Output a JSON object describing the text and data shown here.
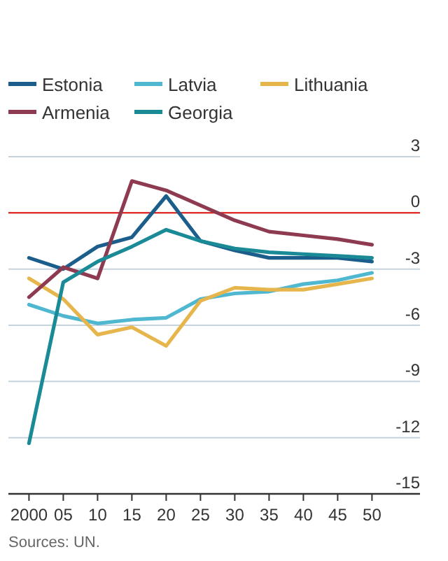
{
  "chart_data": {
    "type": "line",
    "x": [
      2000,
      2005,
      2010,
      2015,
      2020,
      2025,
      2030,
      2035,
      2040,
      2045,
      2050
    ],
    "series": [
      {
        "name": "Estonia",
        "color": "#1b5e8c",
        "values": [
          -2.4,
          -3.0,
          -1.8,
          -1.3,
          0.9,
          -1.5,
          -2.0,
          -2.4,
          -2.4,
          -2.4,
          -2.6
        ]
      },
      {
        "name": "Latvia",
        "color": "#4fb8d0",
        "values": [
          -4.9,
          -5.5,
          -5.9,
          -5.7,
          -5.6,
          -4.6,
          -4.3,
          -4.2,
          -3.8,
          -3.6,
          -3.2
        ]
      },
      {
        "name": "Lithuania",
        "color": "#e6b64c",
        "values": [
          -3.5,
          -4.6,
          -6.5,
          -6.1,
          -7.1,
          -4.7,
          -4.0,
          -4.1,
          -4.1,
          -3.8,
          -3.5
        ]
      },
      {
        "name": "Armenia",
        "color": "#8e3a50",
        "values": [
          -4.5,
          -2.9,
          -3.5,
          1.7,
          1.2,
          0.4,
          -0.4,
          -1.0,
          -1.2,
          -1.4,
          -1.7
        ]
      },
      {
        "name": "Georgia",
        "color": "#1a8a96",
        "values": [
          -12.3,
          -3.7,
          -2.6,
          -1.8,
          -0.9,
          -1.5,
          -1.9,
          -2.1,
          -2.2,
          -2.3,
          -2.4
        ]
      }
    ],
    "xlim": [
      1997,
      2057
    ],
    "xticks": [
      2000,
      {
        "value": 2005,
        "label": "05"
      },
      {
        "value": 2010,
        "label": "10"
      },
      {
        "value": 2015,
        "label": "15"
      },
      {
        "value": 2020,
        "label": "20"
      },
      {
        "value": 2025,
        "label": "25"
      },
      {
        "value": 2030,
        "label": "30"
      },
      {
        "value": 2035,
        "label": "35"
      },
      {
        "value": 2040,
        "label": "40"
      },
      {
        "value": 2045,
        "label": "45"
      },
      {
        "value": 2050,
        "label": "50"
      }
    ],
    "ylim": [
      -15,
      3
    ],
    "yticks": [
      3,
      0,
      -3,
      -6,
      -9,
      -12,
      -15
    ],
    "grid": "y",
    "legend": "top",
    "marker": "none",
    "line_style": "solid",
    "ref_lines": [
      {
        "axis": "y",
        "value": 0,
        "color": "#e3120b"
      }
    ],
    "annotations": [
      "Sources: UN."
    ]
  }
}
